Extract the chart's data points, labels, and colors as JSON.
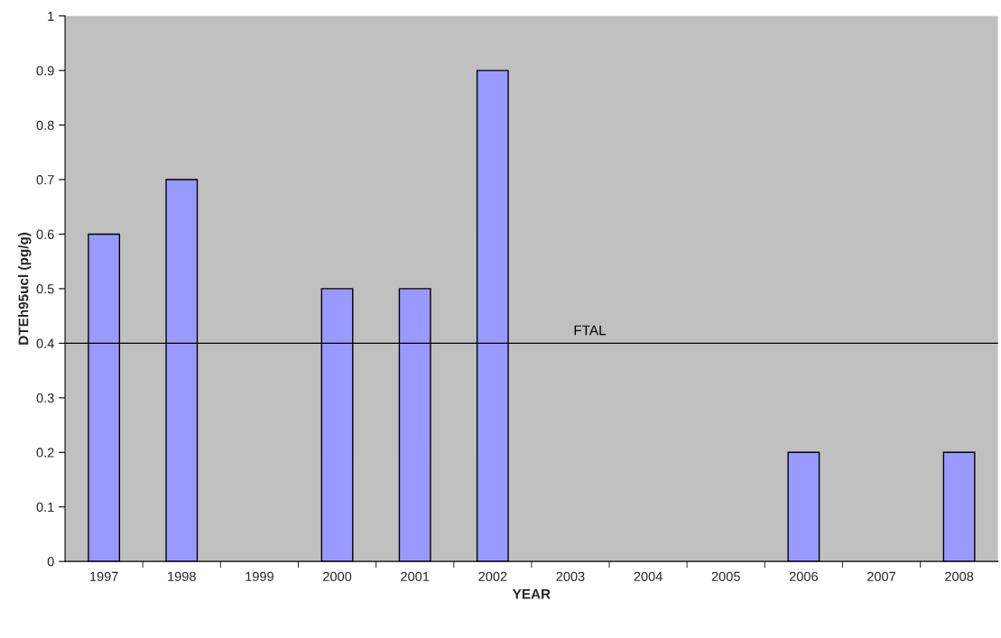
{
  "chart_data": {
    "type": "bar",
    "xlabel": "YEAR",
    "ylabel": "DTEh95ucl (pg/g)",
    "categories": [
      "1997",
      "1998",
      "1999",
      "2000",
      "2001",
      "2002",
      "2003",
      "2004",
      "2005",
      "2006",
      "2007",
      "2008"
    ],
    "series": [
      {
        "color": "#9999ff",
        "values": [
          0.6,
          0.7,
          null,
          0.5,
          0.5,
          0.9,
          null,
          null,
          null,
          0.2,
          null,
          0.2
        ]
      }
    ],
    "ylim": [
      0,
      1
    ],
    "yticks": [
      0,
      0.1,
      0.2,
      0.3,
      0.4,
      0.5,
      0.6,
      0.7,
      0.8,
      0.9,
      1
    ],
    "ref_lines": [
      {
        "axis": "y",
        "value": 0.4,
        "label": "FTAL",
        "color": "#000000"
      }
    ],
    "grid": false,
    "legend": false
  }
}
